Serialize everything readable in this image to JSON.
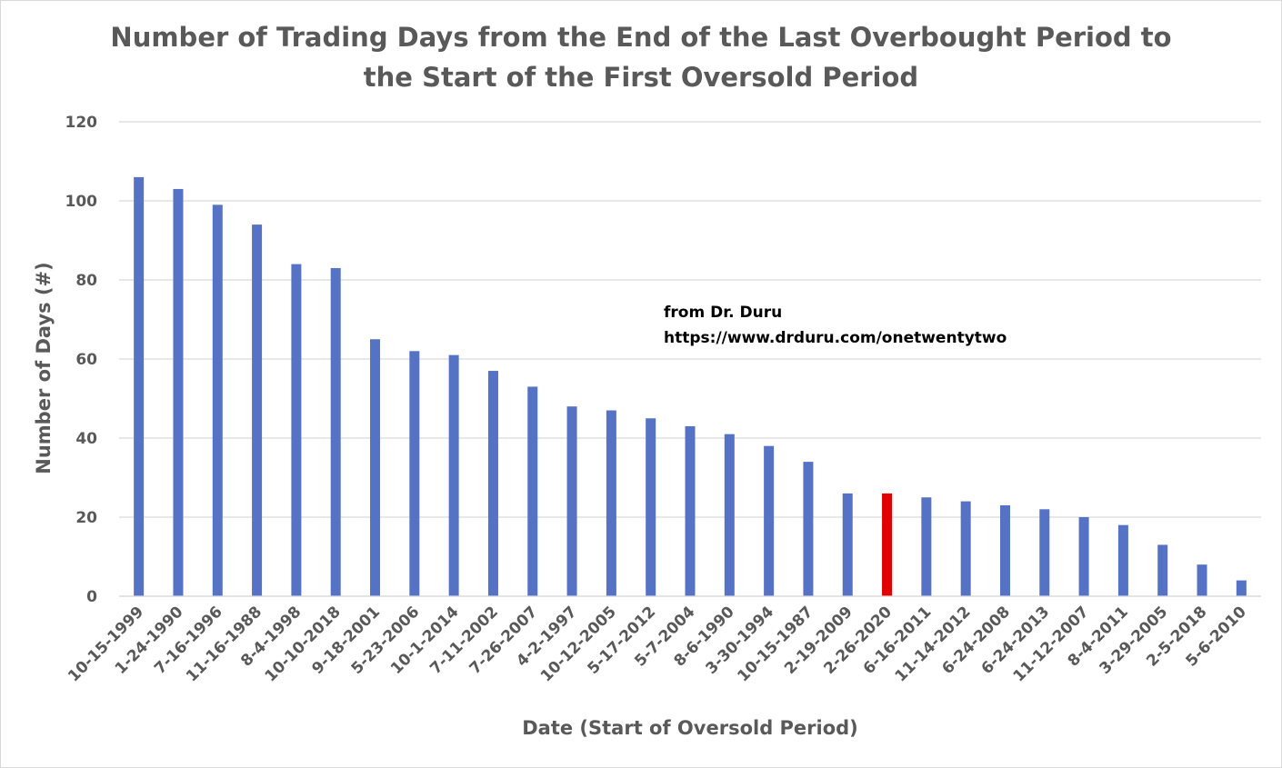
{
  "chart_data": {
    "type": "bar",
    "title": [
      "Number of Trading Days from the End of the Last Overbought Period to",
      "the Start of the First Oversold Period"
    ],
    "xlabel": "Date (Start of Oversold Period)",
    "ylabel": "Number of Days (#)",
    "ylim": [
      0,
      120
    ],
    "yticks": [
      0,
      20,
      40,
      60,
      80,
      100,
      120
    ],
    "grid": true,
    "legend": "none",
    "categories": [
      "10-15-1999",
      "1-24-1990",
      "7-16-1996",
      "11-16-1988",
      "8-4-1998",
      "10-10-2018",
      "9-18-2001",
      "5-23-2006",
      "10-1-2014",
      "7-11-2002",
      "7-26-2007",
      "4-2-1997",
      "10-12-2005",
      "5-17-2012",
      "5-7-2004",
      "8-6-1990",
      "3-30-1994",
      "10-15-1987",
      "2-19-2009",
      "2-26-2020",
      "6-16-2011",
      "11-14-2012",
      "6-24-2008",
      "6-24-2013",
      "11-12-2007",
      "8-4-2011",
      "3-29-2005",
      "2-5-2018",
      "5-6-2010"
    ],
    "values": [
      106,
      103,
      99,
      94,
      84,
      83,
      65,
      62,
      61,
      57,
      53,
      48,
      47,
      45,
      43,
      41,
      38,
      34,
      26,
      26,
      25,
      24,
      23,
      22,
      20,
      18,
      13,
      8,
      4
    ],
    "highlight_category": "2-26-2020",
    "colors": {
      "bar": "#5572C4",
      "highlight": "#E00000",
      "grid": "#d9d9d9",
      "text": "#595959"
    },
    "annotations": [
      "from Dr. Duru",
      "https://www.drduru.com/onetwentytwo"
    ]
  }
}
